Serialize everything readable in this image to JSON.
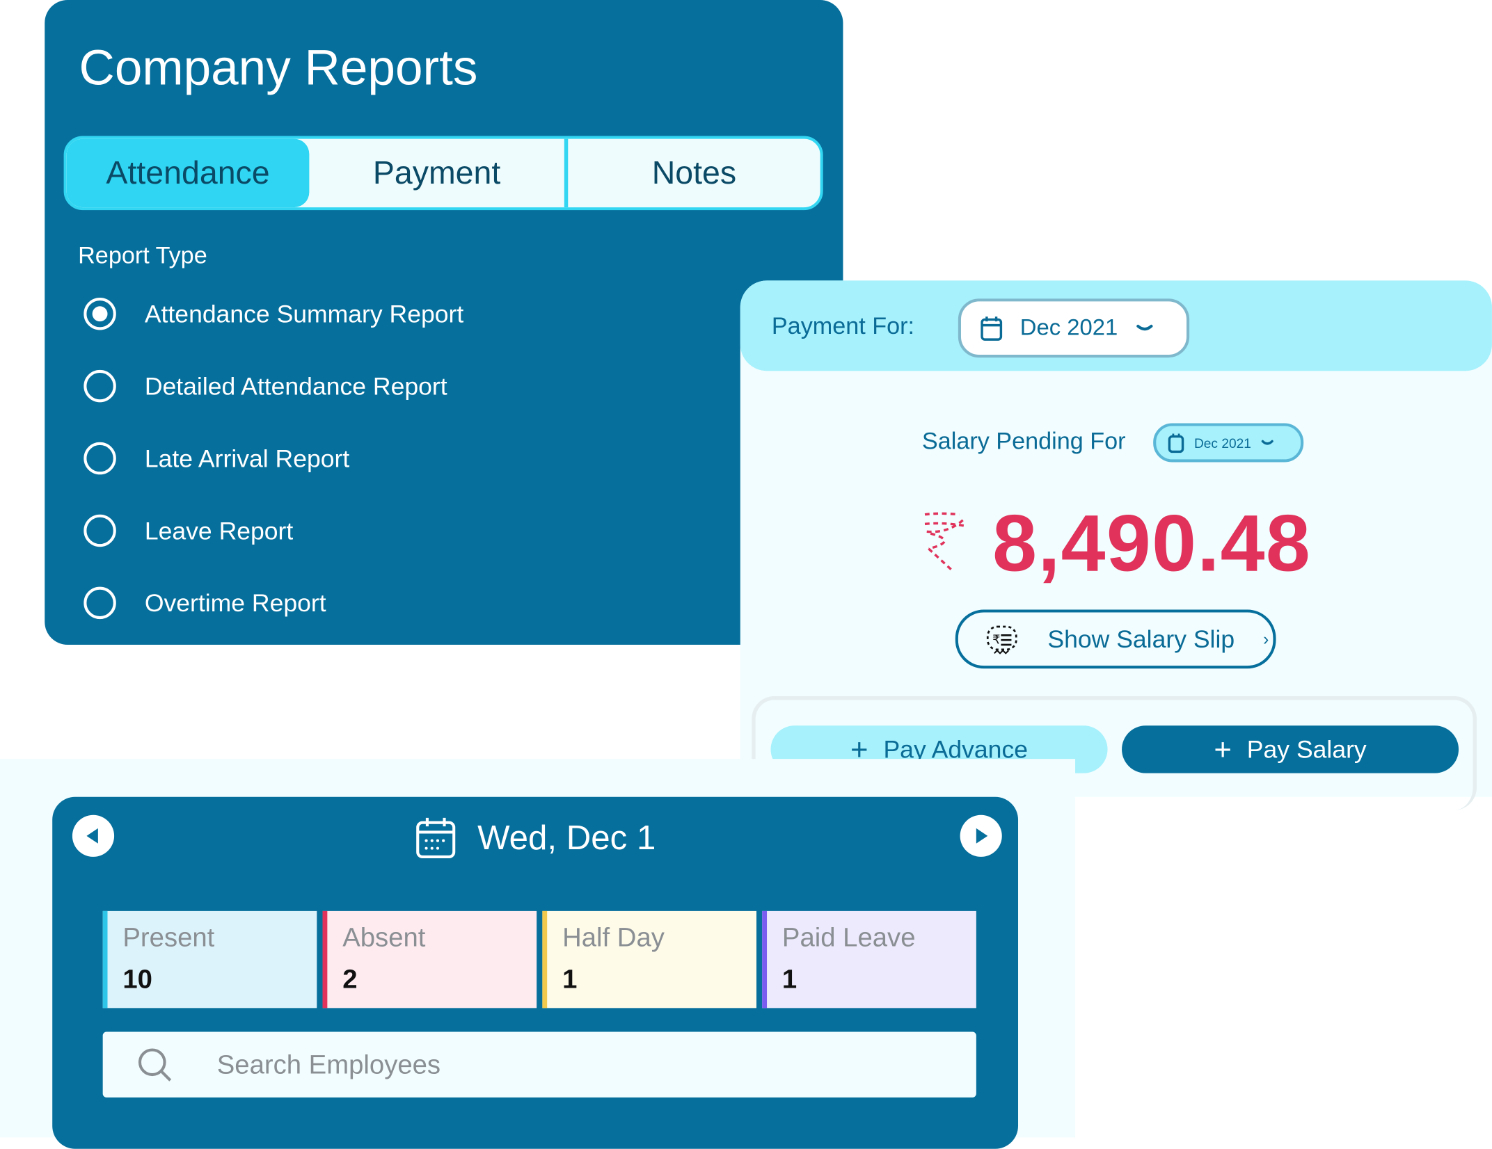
{
  "reports": {
    "title": "Company Reports",
    "tabs": [
      {
        "label": "Attendance",
        "active": true
      },
      {
        "label": "Payment"
      },
      {
        "label": "Notes"
      }
    ],
    "report_type_label": "Report Type",
    "options": [
      {
        "label": "Attendance Summary Report",
        "selected": true
      },
      {
        "label": "Detailed Attendance Report"
      },
      {
        "label": "Late Arrival Report"
      },
      {
        "label": "Leave Report"
      },
      {
        "label": "Overtime Report"
      }
    ]
  },
  "payment": {
    "payment_for_label": "Payment For:",
    "month": "Dec 2021",
    "salary_pending_label": "Salary Pending For",
    "pending_month": "Dec 2021",
    "currency_icon": "rupee-icon",
    "amount": "8,490.48",
    "show_slip": "Show Salary Slip",
    "pay_advance": "Pay Advance",
    "pay_salary": "Pay Salary"
  },
  "attendance": {
    "date": "Wed, Dec 1",
    "cards": [
      {
        "label": "Present",
        "value": "10",
        "color": "#2fc5e8"
      },
      {
        "label": "Absent",
        "value": "2",
        "color": "#e0325a"
      },
      {
        "label": "Half Day",
        "value": "1",
        "color": "#f2c94c"
      },
      {
        "label": "Paid Leave",
        "value": "1",
        "color": "#7b5cf0"
      }
    ],
    "search_placeholder": "Search Employees"
  },
  "colors": {
    "primary": "#066f9c",
    "accent": "#2fd5f2",
    "amount": "#e0325a"
  }
}
